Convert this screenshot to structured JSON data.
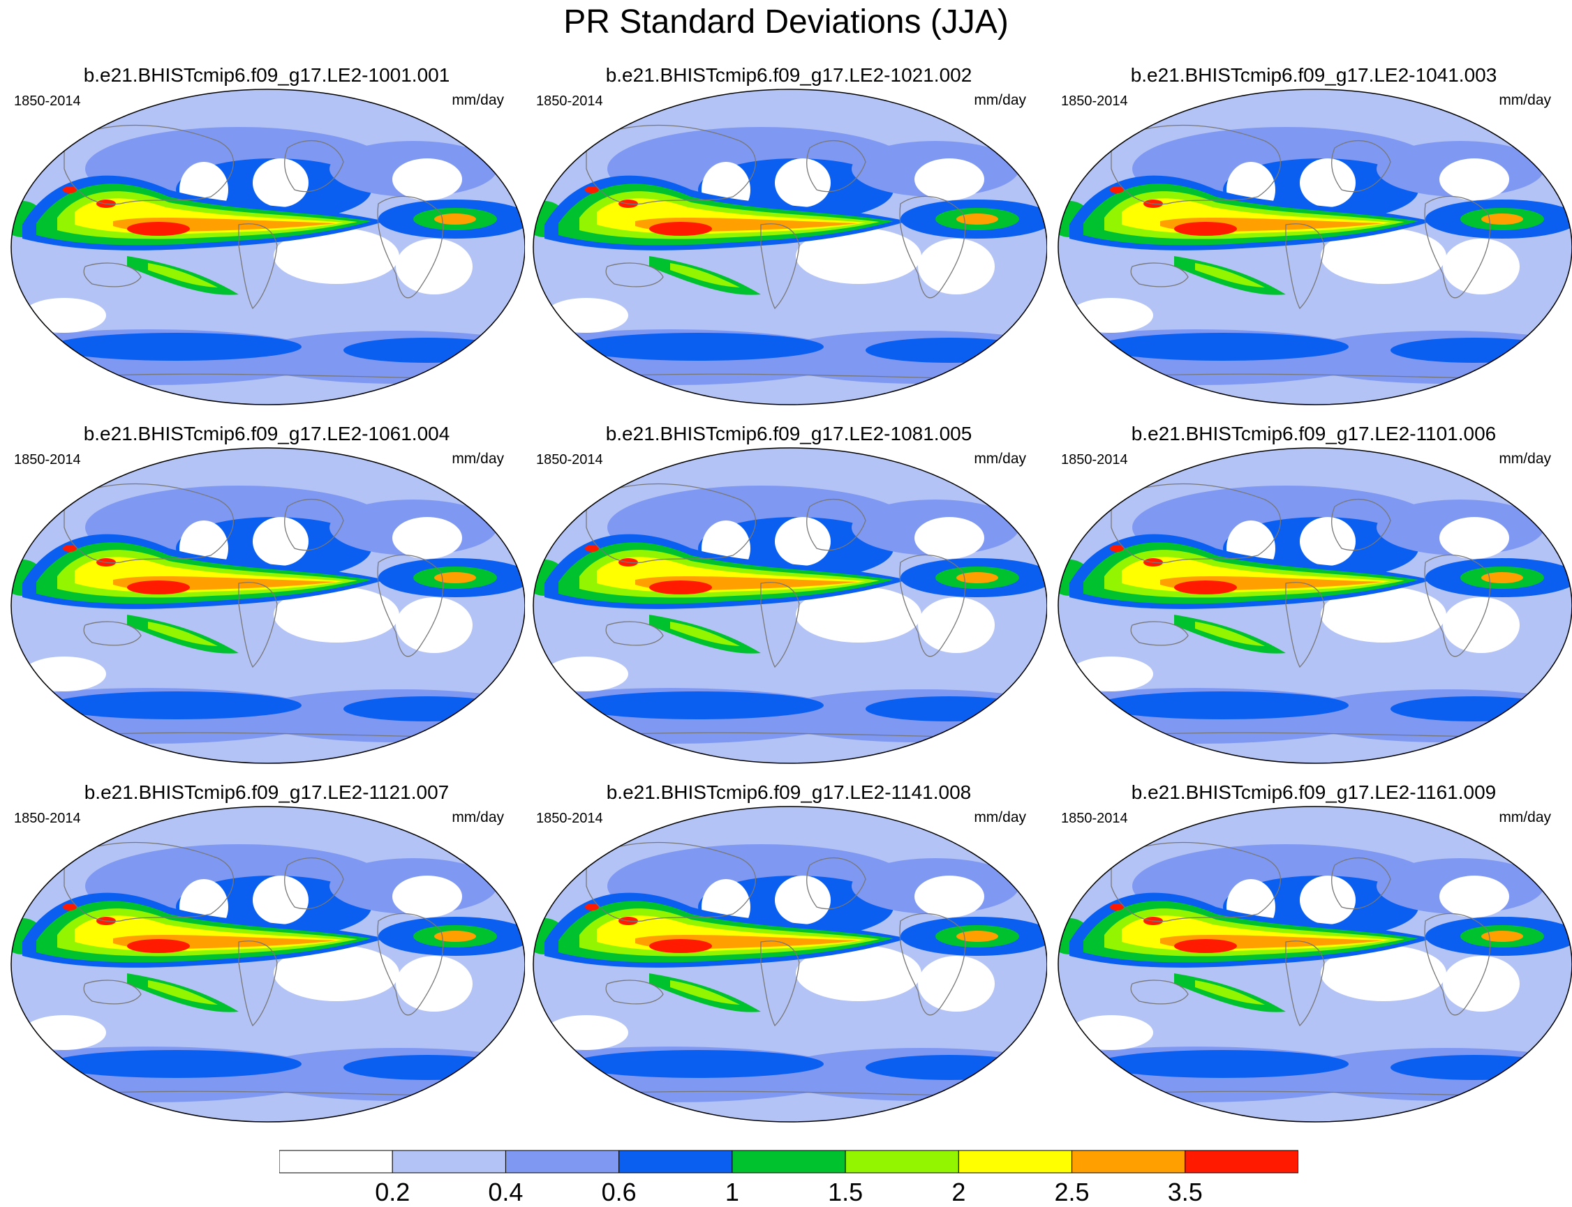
{
  "title": "PR Standard Deviations (JJA)",
  "panels": [
    {
      "title": "b.e21.BHISTcmip6.f09_g17.LE2-1001.001",
      "period": "1850-2014",
      "units": "mm/day"
    },
    {
      "title": "b.e21.BHISTcmip6.f09_g17.LE2-1021.002",
      "period": "1850-2014",
      "units": "mm/day"
    },
    {
      "title": "b.e21.BHISTcmip6.f09_g17.LE2-1041.003",
      "period": "1850-2014",
      "units": "mm/day"
    },
    {
      "title": "b.e21.BHISTcmip6.f09_g17.LE2-1061.004",
      "period": "1850-2014",
      "units": "mm/day"
    },
    {
      "title": "b.e21.BHISTcmip6.f09_g17.LE2-1081.005",
      "period": "1850-2014",
      "units": "mm/day"
    },
    {
      "title": "b.e21.BHISTcmip6.f09_g17.LE2-1101.006",
      "period": "1850-2014",
      "units": "mm/day"
    },
    {
      "title": "b.e21.BHISTcmip6.f09_g17.LE2-1121.007",
      "period": "1850-2014",
      "units": "mm/day"
    },
    {
      "title": "b.e21.BHISTcmip6.f09_g17.LE2-1141.008",
      "period": "1850-2014",
      "units": "mm/day"
    },
    {
      "title": "b.e21.BHISTcmip6.f09_g17.LE2-1161.009",
      "period": "1850-2014",
      "units": "mm/day"
    }
  ],
  "colorbar": {
    "colors": [
      "#ffffff",
      "#b4c3f5",
      "#7f98f2",
      "#0a5ff0",
      "#00c12e",
      "#94f500",
      "#ffff00",
      "#ff9f00",
      "#ff1a00"
    ],
    "labels": [
      "0.2",
      "0.4",
      "0.6",
      "1",
      "1.5",
      "2",
      "2.5",
      "3.5"
    ]
  }
}
